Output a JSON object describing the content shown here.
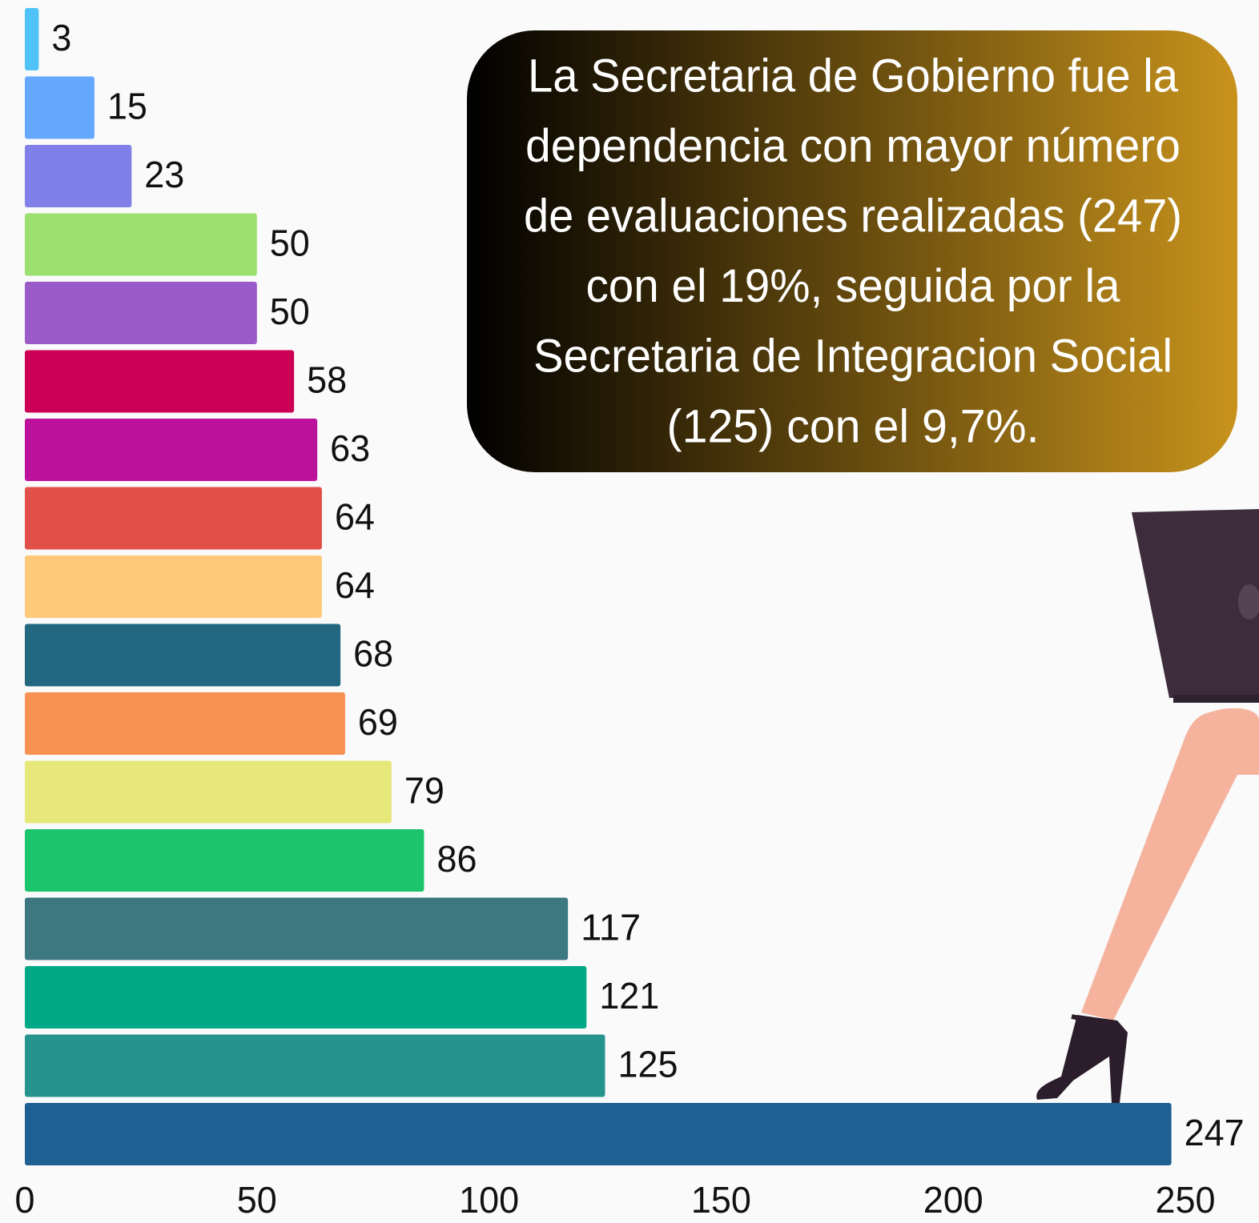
{
  "chart_data": {
    "type": "barh",
    "values": [
      3,
      15,
      23,
      50,
      50,
      58,
      63,
      64,
      64,
      68,
      69,
      79,
      86,
      117,
      121,
      125,
      247
    ],
    "colors": [
      "#4fc3f7",
      "#64a8ff",
      "#8080e8",
      "#9ce070",
      "#9a5ac8",
      "#cc0055",
      "#bb119b",
      "#e05048",
      "#ffc97a",
      "#236880",
      "#f79152",
      "#e6e87a",
      "#1cc46c",
      "#3d7780",
      "#00a985",
      "#26948d",
      "#1e6092"
    ],
    "xlim": [
      0,
      250
    ],
    "xticks": [
      0,
      50,
      100,
      150,
      200,
      250
    ],
    "grid": false,
    "annotation": [
      "La Secretaria de Gobierno fue la",
      "dependencia con mayor número",
      "de evaluaciones realizadas (247)",
      "con el 19%, seguida por la",
      "Secretaria de Integracion Social",
      "(125) con el 9,7%."
    ]
  }
}
